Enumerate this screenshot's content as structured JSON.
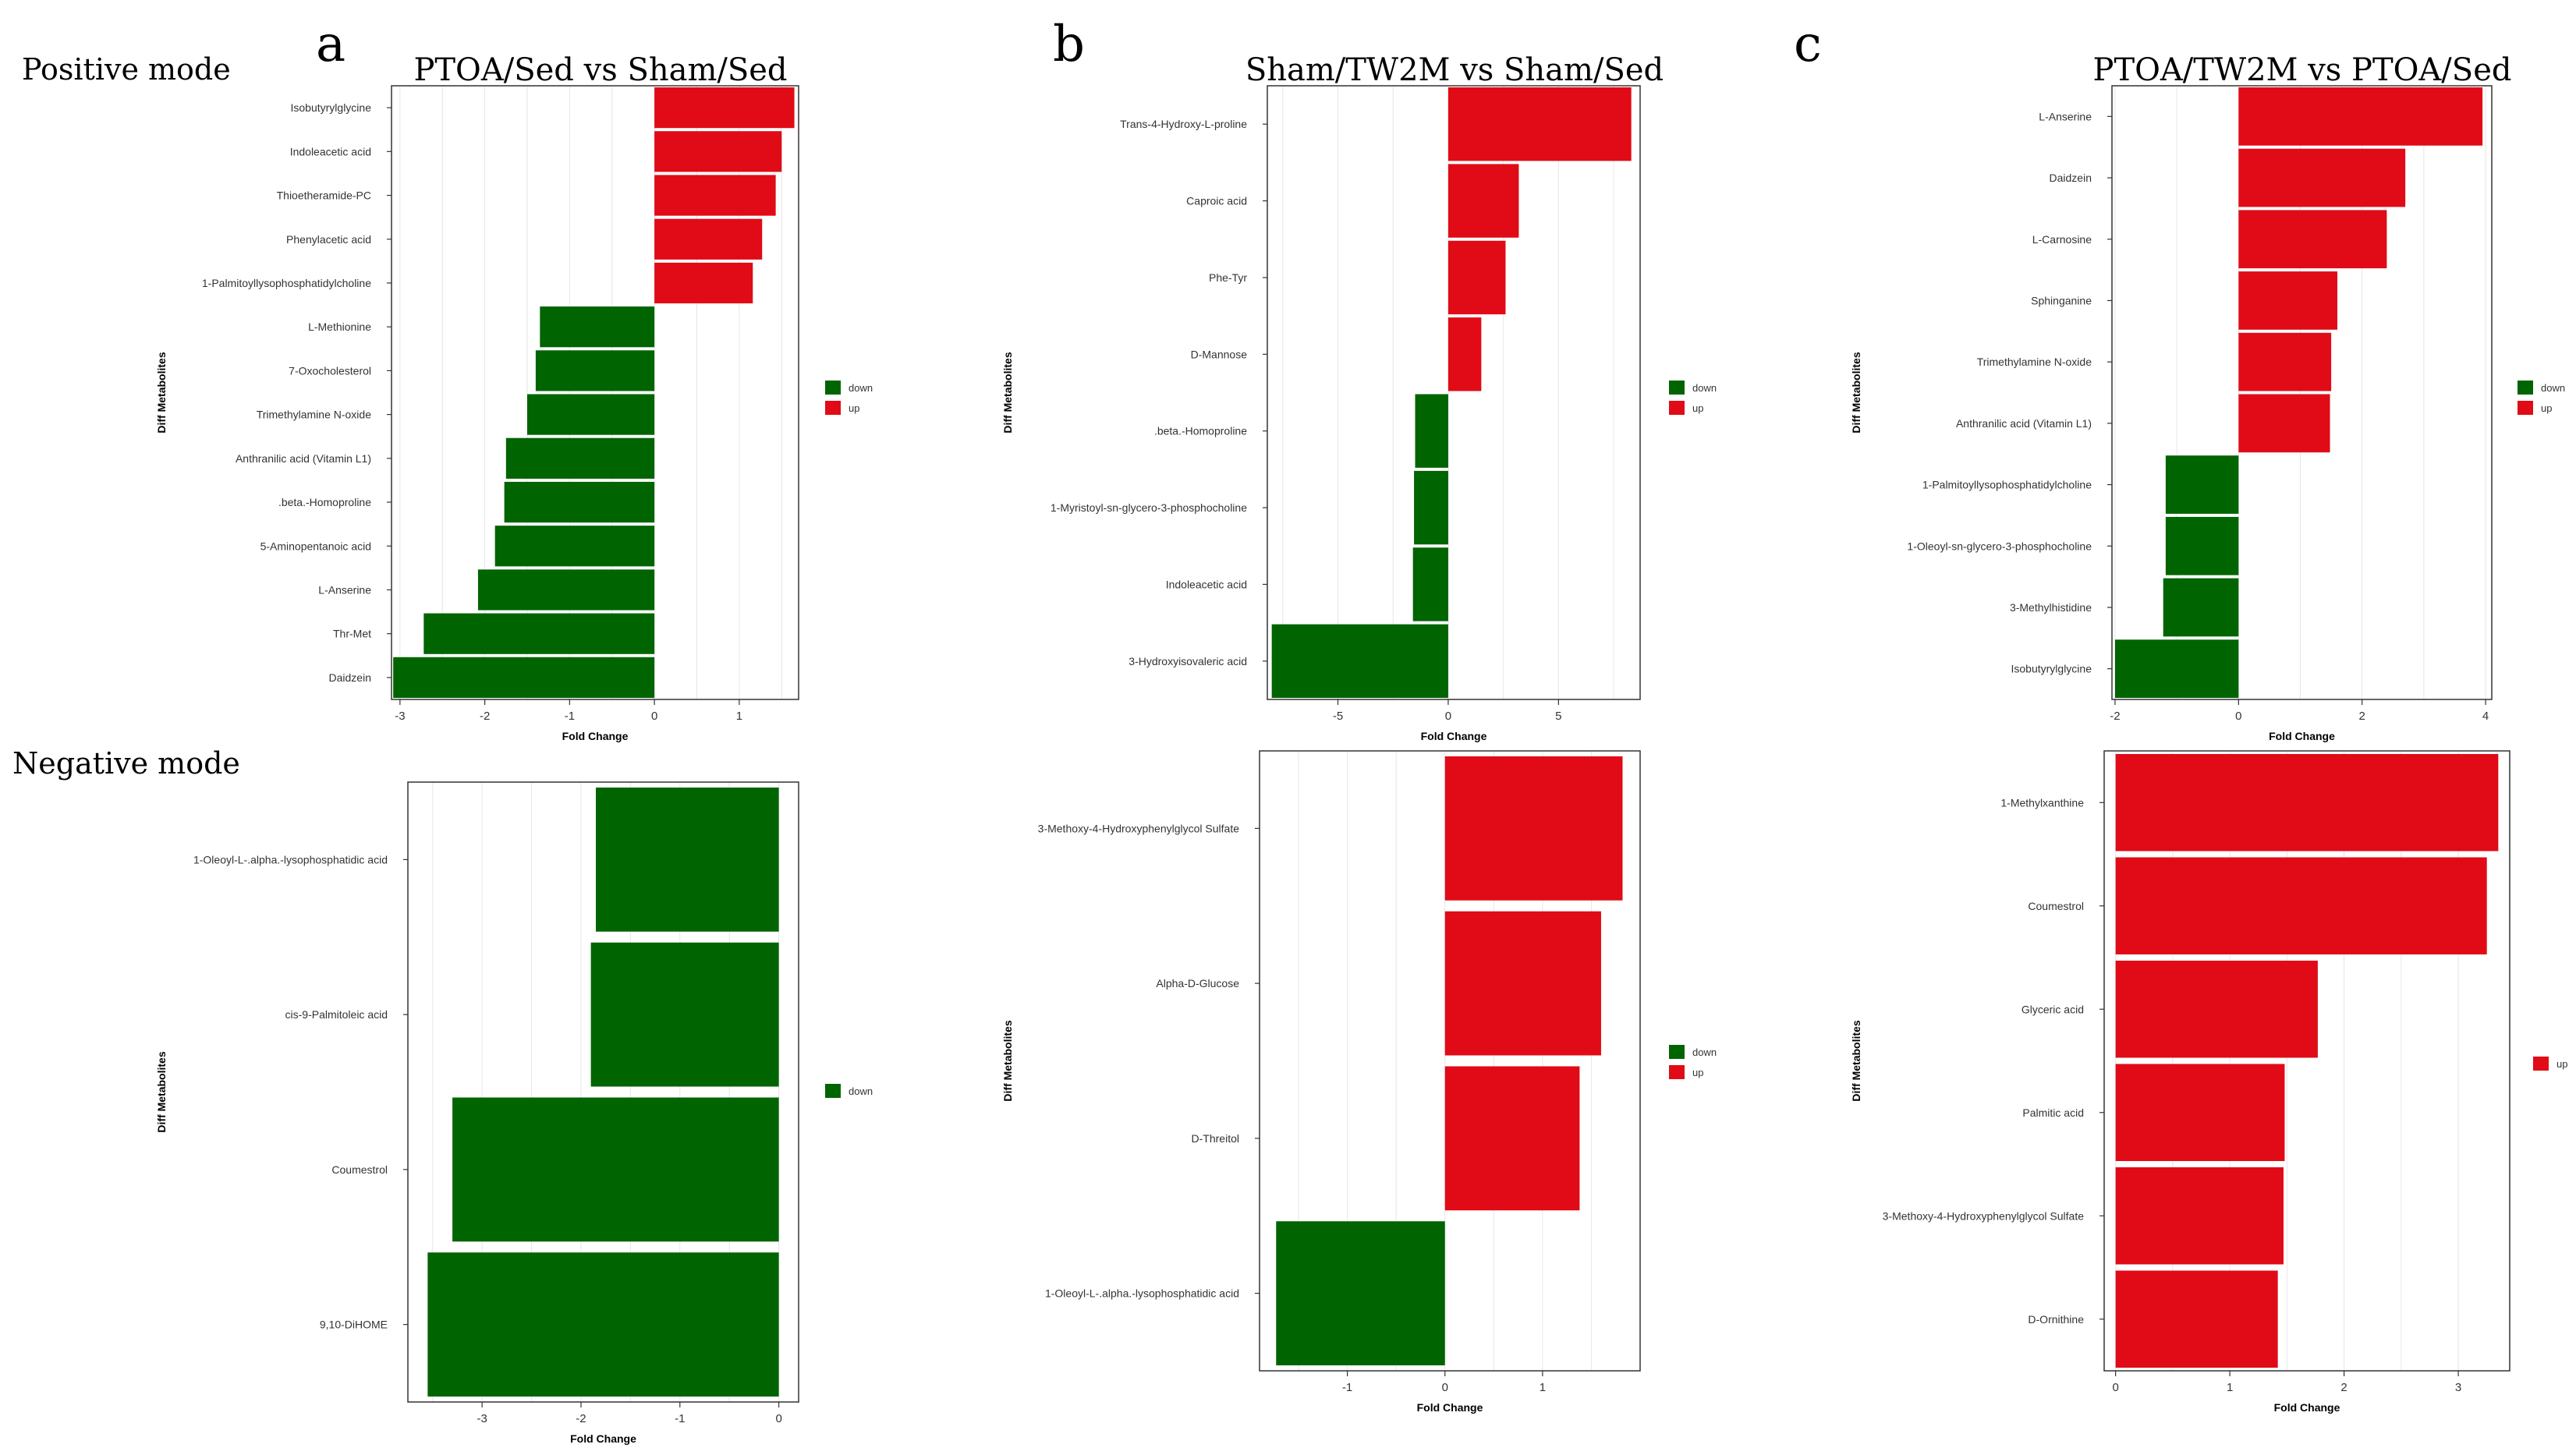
{
  "mode_labels": {
    "positive": "Positive mode",
    "negative": "Negative mode"
  },
  "colors": {
    "down": "#006400",
    "up": "#e00b16",
    "grid": "#e6e6e6"
  },
  "chart_data": [
    {
      "id": "a-pos",
      "panel_letter": "a",
      "title": "PTOA/Sed vs Sham/Sed",
      "type": "bar",
      "orientation": "horizontal",
      "xlabel": "Fold Change",
      "ylabel": "Diff Metabolites",
      "xlim": [
        -3.1,
        1.7
      ],
      "xticks": [
        -3,
        -2,
        -1,
        0,
        1
      ],
      "categories": [
        "Isobutyrylglycine",
        "Indoleacetic acid",
        "Thioetheramide-PC",
        "Phenylacetic acid",
        "1-Palmitoyllysophosphatidylcholine",
        "L-Methionine",
        "7-Oxocholesterol",
        "Trimethylamine N-oxide",
        "Anthranilic acid (Vitamin L1)",
        ".beta.-Homoproline",
        "5-Aminopentanoic acid",
        "L-Anserine",
        "Thr-Met",
        "Daidzein"
      ],
      "values": [
        1.65,
        1.5,
        1.43,
        1.27,
        1.16,
        -1.35,
        -1.4,
        -1.5,
        -1.75,
        -1.77,
        -1.88,
        -2.08,
        -2.72,
        -3.08
      ],
      "legend": [
        {
          "label": "down",
          "color": "#006400"
        },
        {
          "label": "up",
          "color": "#e00b16"
        }
      ]
    },
    {
      "id": "b-pos",
      "panel_letter": "b",
      "title": "Sham/TW2M vs Sham/Sed",
      "type": "bar",
      "orientation": "horizontal",
      "xlabel": "Fold Change",
      "ylabel": "Diff Metabolites",
      "xlim": [
        -8.2,
        8.7
      ],
      "xticks": [
        -5,
        0,
        5
      ],
      "categories": [
        "Trans-4-Hydroxy-L-proline",
        "Caproic acid",
        "Phe-Tyr",
        "D-Mannose",
        ".beta.-Homoproline",
        "1-Myristoyl-sn-glycero-3-phosphocholine",
        "Indoleacetic acid",
        "3-Hydroxyisovaleric acid"
      ],
      "values": [
        8.3,
        3.2,
        2.6,
        1.5,
        -1.5,
        -1.55,
        -1.6,
        -8.0
      ],
      "legend": [
        {
          "label": "down",
          "color": "#006400"
        },
        {
          "label": "up",
          "color": "#e00b16"
        }
      ]
    },
    {
      "id": "c-pos",
      "panel_letter": "c",
      "title": "PTOA/TW2M vs PTOA/Sed",
      "type": "bar",
      "orientation": "horizontal",
      "xlabel": "Fold Change",
      "ylabel": "Diff Metabolites",
      "xlim": [
        -2.05,
        4.1
      ],
      "xticks": [
        -2,
        0,
        2,
        4
      ],
      "categories": [
        "L-Anserine",
        "Daidzein",
        "L-Carnosine",
        "Sphinganine",
        "Trimethylamine N-oxide",
        "Anthranilic acid (Vitamin L1)",
        "1-Palmitoyllysophosphatidylcholine",
        "1-Oleoyl-sn-glycero-3-phosphocholine",
        "3-Methylhistidine",
        "Isobutyrylglycine"
      ],
      "values": [
        3.95,
        2.7,
        2.4,
        1.6,
        1.5,
        1.48,
        -1.18,
        -1.18,
        -1.22,
        -2.0
      ],
      "legend": [
        {
          "label": "down",
          "color": "#006400"
        },
        {
          "label": "up",
          "color": "#e00b16"
        }
      ]
    },
    {
      "id": "a-neg",
      "panel_letter": "",
      "title": "",
      "type": "bar",
      "orientation": "horizontal",
      "xlabel": "Fold Change",
      "ylabel": "Diff Metabolites",
      "xlim": [
        -3.75,
        0.2
      ],
      "xticks": [
        -3,
        -2,
        -1,
        0
      ],
      "categories": [
        "1-Oleoyl-L-.alpha.-lysophosphatidic acid",
        "cis-9-Palmitoleic acid",
        "Coumestrol",
        "9,10-DiHOME"
      ],
      "values": [
        -1.85,
        -1.9,
        -3.3,
        -3.55
      ],
      "legend": [
        {
          "label": "down",
          "color": "#006400"
        }
      ]
    },
    {
      "id": "b-neg",
      "panel_letter": "",
      "title": "",
      "type": "bar",
      "orientation": "horizontal",
      "xlabel": "Fold Change",
      "ylabel": "Diff Metabolites",
      "xlim": [
        -1.9,
        2.0
      ],
      "xticks": [
        -1,
        0,
        1
      ],
      "categories": [
        "3-Methoxy-4-Hydroxyphenylglycol Sulfate",
        "Alpha-D-Glucose",
        "D-Threitol",
        "1-Oleoyl-L-.alpha.-lysophosphatidic acid"
      ],
      "values": [
        1.82,
        1.6,
        1.38,
        -1.73
      ],
      "legend": [
        {
          "label": "down",
          "color": "#006400"
        },
        {
          "label": "up",
          "color": "#e00b16"
        }
      ]
    },
    {
      "id": "c-neg",
      "panel_letter": "",
      "title": "",
      "type": "bar",
      "orientation": "horizontal",
      "xlabel": "Fold Change",
      "ylabel": "Diff Metabolites",
      "xlim": [
        -0.1,
        3.45
      ],
      "xticks": [
        0,
        1,
        2,
        3
      ],
      "categories": [
        "1-Methylxanthine",
        "Coumestrol",
        "Glyceric acid",
        "Palmitic acid",
        "3-Methoxy-4-Hydroxyphenylglycol Sulfate",
        "D-Ornithine"
      ],
      "values": [
        3.35,
        3.25,
        1.77,
        1.48,
        1.47,
        1.42
      ],
      "legend": [
        {
          "label": "up",
          "color": "#e00b16"
        }
      ]
    }
  ]
}
